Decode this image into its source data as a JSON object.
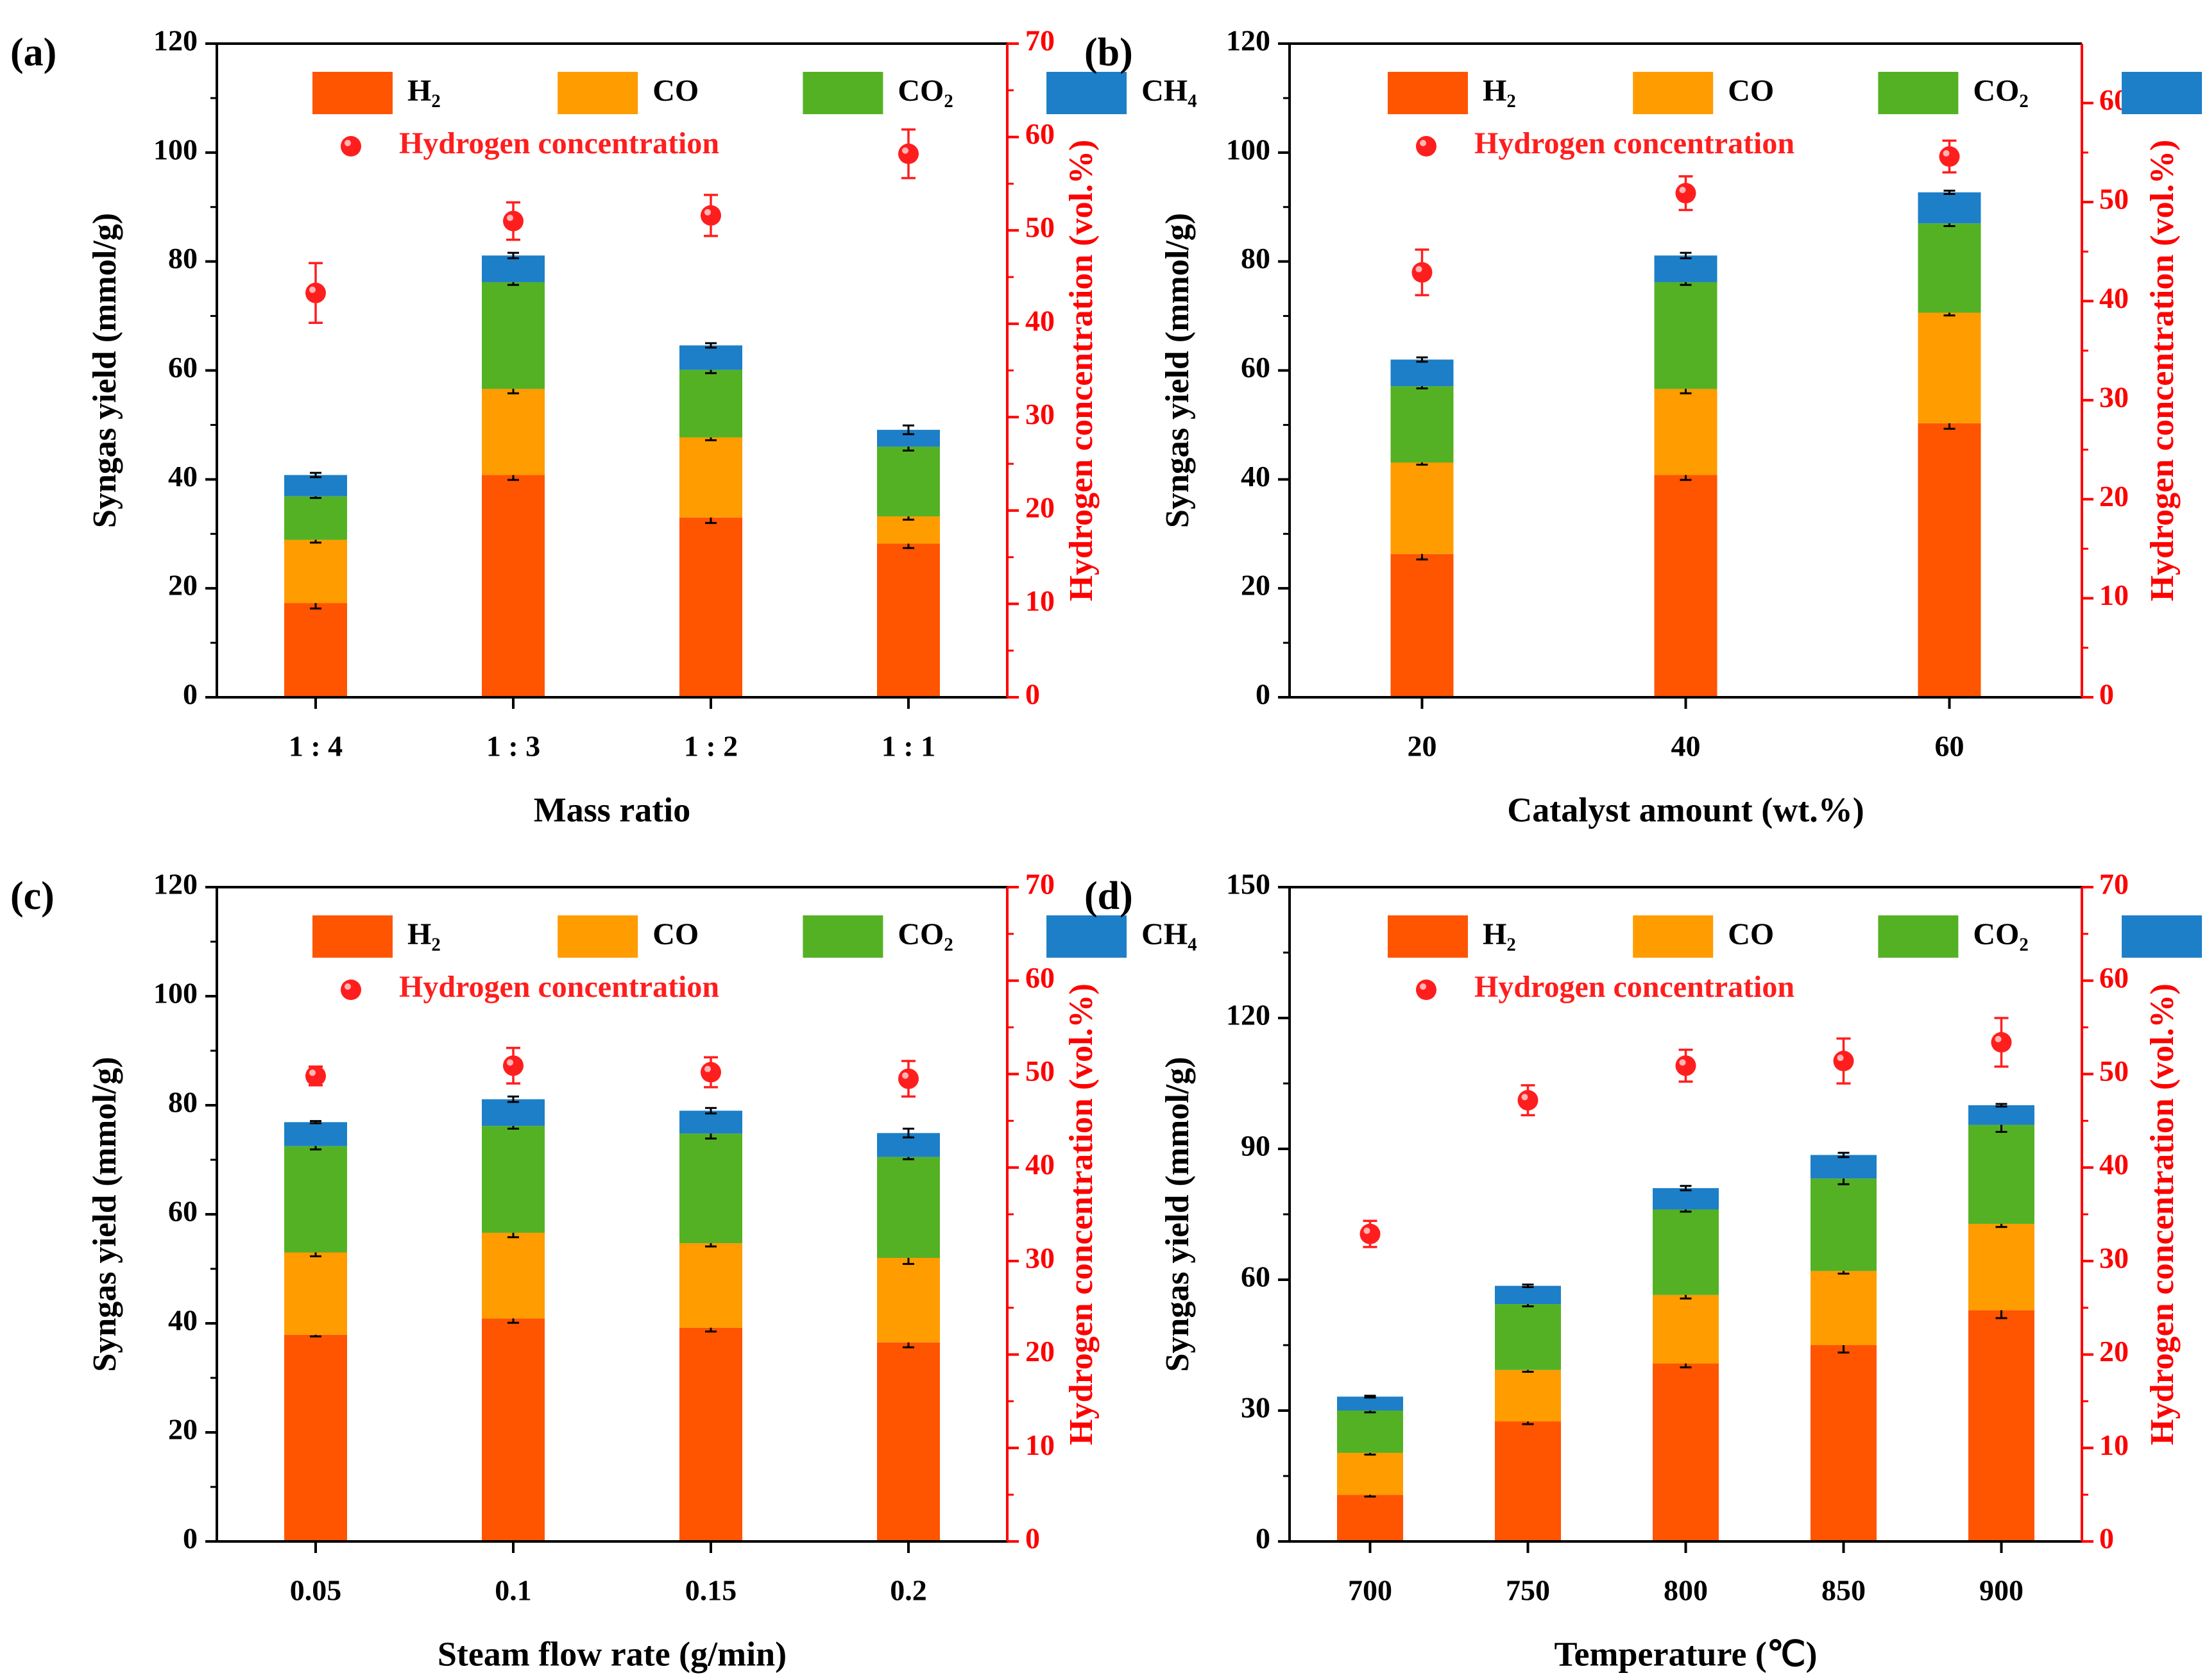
{
  "legend": {
    "h2": "H₂",
    "co": "CO",
    "co2": "CO₂",
    "ch4": "CH₄",
    "hydrogen": "Hydrogen concentration"
  },
  "colors": {
    "h2": "#ff5400",
    "co": "#ff9c00",
    "co2": "#55b124",
    "ch4": "#1d7fc7",
    "conc": "#ff1e1e",
    "axis": "#000000",
    "right_axis": "#ff0000"
  },
  "chart_data": [
    {
      "type": "bar",
      "panel": "(a)",
      "xlabel": "Mass ratio",
      "ylabel": "Syngas yield (mmol/g)",
      "y2label": "Hydrogen concentration (vol.%)",
      "categories": [
        "1 : 4",
        "1 : 3",
        "1 : 2",
        "1 : 1"
      ],
      "ylim": [
        0,
        120
      ],
      "yticks": [
        0,
        20,
        40,
        60,
        80,
        100,
        120
      ],
      "y2lim": [
        0,
        70
      ],
      "y2ticks": [
        0,
        10,
        20,
        30,
        40,
        50,
        60,
        70
      ],
      "stacked": true,
      "series": [
        {
          "name": "H₂",
          "values": [
            17.3,
            40.8,
            33.0,
            28.2
          ],
          "err": [
            1.0,
            0.9,
            1.0,
            0.8
          ]
        },
        {
          "name": "CO",
          "values": [
            11.6,
            15.8,
            14.7,
            5.0
          ],
          "err": [
            0.5,
            0.8,
            0.5,
            0.6
          ]
        },
        {
          "name": "CO₂",
          "values": [
            8.0,
            19.6,
            12.4,
            12.8
          ],
          "err": [
            0.3,
            0.5,
            0.6,
            0.7
          ]
        },
        {
          "name": "CH₄",
          "values": [
            3.9,
            4.9,
            4.5,
            3.1
          ],
          "err": [
            0.4,
            0.5,
            0.4,
            0.8
          ]
        }
      ],
      "hydrogen_concentration": {
        "name": "Hydrogen concentration",
        "values": [
          43.3,
          51.0,
          51.6,
          58.2
        ],
        "err": [
          3.2,
          2.0,
          2.2,
          2.6
        ]
      }
    },
    {
      "type": "bar",
      "panel": "(b)",
      "xlabel": "Catalyst amount (wt.%)",
      "ylabel": "Syngas yield (mmol/g)",
      "y2label": "Hydrogen concentration (vol.%)",
      "categories": [
        "20",
        "40",
        "60"
      ],
      "ylim": [
        0,
        120
      ],
      "yticks": [
        0,
        20,
        40,
        60,
        80,
        100,
        120
      ],
      "y2lim": [
        0,
        66
      ],
      "y2ticks": [
        0,
        10,
        20,
        30,
        40,
        50,
        60
      ],
      "stacked": true,
      "series": [
        {
          "name": "H₂",
          "values": [
            26.3,
            40.8,
            50.3
          ],
          "err": [
            1.0,
            0.9,
            1.0
          ]
        },
        {
          "name": "CO",
          "values": [
            16.8,
            15.8,
            20.3
          ],
          "err": [
            0.4,
            0.8,
            0.5
          ]
        },
        {
          "name": "CO₂",
          "values": [
            14.0,
            19.6,
            16.4
          ],
          "err": [
            0.4,
            0.5,
            0.5
          ]
        },
        {
          "name": "CH₄",
          "values": [
            4.9,
            4.9,
            5.7
          ],
          "err": [
            0.4,
            0.5,
            0.3
          ]
        }
      ],
      "hydrogen_concentration": {
        "name": "Hydrogen concentration",
        "values": [
          42.9,
          50.9,
          54.6
        ],
        "err": [
          2.3,
          1.7,
          1.6
        ]
      }
    },
    {
      "type": "bar",
      "panel": "(c)",
      "xlabel": "Steam flow rate (g/min)",
      "ylabel": "Syngas yield (mmol/g)",
      "y2label": "Hydrogen concentration (vol.%)",
      "categories": [
        "0.05",
        "0.1",
        "0.15",
        "0.2"
      ],
      "ylim": [
        0,
        120
      ],
      "yticks": [
        0,
        20,
        40,
        60,
        80,
        100,
        120
      ],
      "y2lim": [
        0,
        70
      ],
      "y2ticks": [
        0,
        10,
        20,
        30,
        40,
        50,
        60,
        70
      ],
      "stacked": true,
      "series": [
        {
          "name": "H₂",
          "values": [
            37.9,
            40.9,
            39.2,
            36.5
          ],
          "err": [
            0.3,
            0.8,
            0.7,
            0.9
          ]
        },
        {
          "name": "CO",
          "values": [
            15.1,
            15.7,
            15.5,
            15.5
          ],
          "err": [
            0.7,
            0.8,
            0.6,
            1.1
          ]
        },
        {
          "name": "CO₂",
          "values": [
            19.5,
            19.6,
            20.1,
            18.5
          ],
          "err": [
            0.6,
            0.5,
            0.9,
            0.4
          ]
        },
        {
          "name": "CH₄",
          "values": [
            4.4,
            4.9,
            4.2,
            4.4
          ],
          "err": [
            0.2,
            0.5,
            0.5,
            0.8
          ]
        }
      ],
      "hydrogen_concentration": {
        "name": "Hydrogen concentration",
        "values": [
          49.8,
          50.9,
          50.2,
          49.5
        ],
        "err": [
          1.0,
          1.9,
          1.6,
          1.9
        ]
      }
    },
    {
      "type": "bar",
      "panel": "(d)",
      "xlabel": "Temperature (℃)",
      "ylabel": "Syngas yield (mmol/g)",
      "y2label": "Hydrogen concentration (vol.%)",
      "categories": [
        "700",
        "750",
        "800",
        "850",
        "900"
      ],
      "ylim": [
        0,
        150
      ],
      "yticks": [
        0,
        30,
        60,
        90,
        120,
        150
      ],
      "y2lim": [
        0,
        70
      ],
      "y2ticks": [
        0,
        10,
        20,
        30,
        40,
        50,
        60,
        70
      ],
      "stacked": true,
      "series": [
        {
          "name": "H₂",
          "values": [
            10.7,
            27.5,
            40.8,
            45.0,
            53.0
          ],
          "err": [
            0.4,
            0.6,
            0.9,
            1.7,
            1.8
          ]
        },
        {
          "name": "CO",
          "values": [
            9.6,
            11.8,
            15.7,
            17.0,
            19.8
          ],
          "err": [
            0.4,
            0.4,
            0.8,
            0.6,
            0.7
          ]
        },
        {
          "name": "CO₂",
          "values": [
            9.7,
            15.1,
            19.6,
            21.2,
            22.7
          ],
          "err": [
            0.4,
            0.5,
            0.5,
            1.3,
            1.6
          ]
        },
        {
          "name": "CH₄",
          "values": [
            3.2,
            4.2,
            4.9,
            5.4,
            4.5
          ],
          "err": [
            0.2,
            0.3,
            0.5,
            0.5,
            0.3
          ]
        }
      ],
      "hydrogen_concentration": {
        "name": "Hydrogen concentration",
        "values": [
          32.9,
          47.2,
          50.9,
          51.4,
          53.4
        ],
        "err": [
          1.4,
          1.6,
          1.7,
          2.4,
          2.6
        ]
      }
    }
  ]
}
